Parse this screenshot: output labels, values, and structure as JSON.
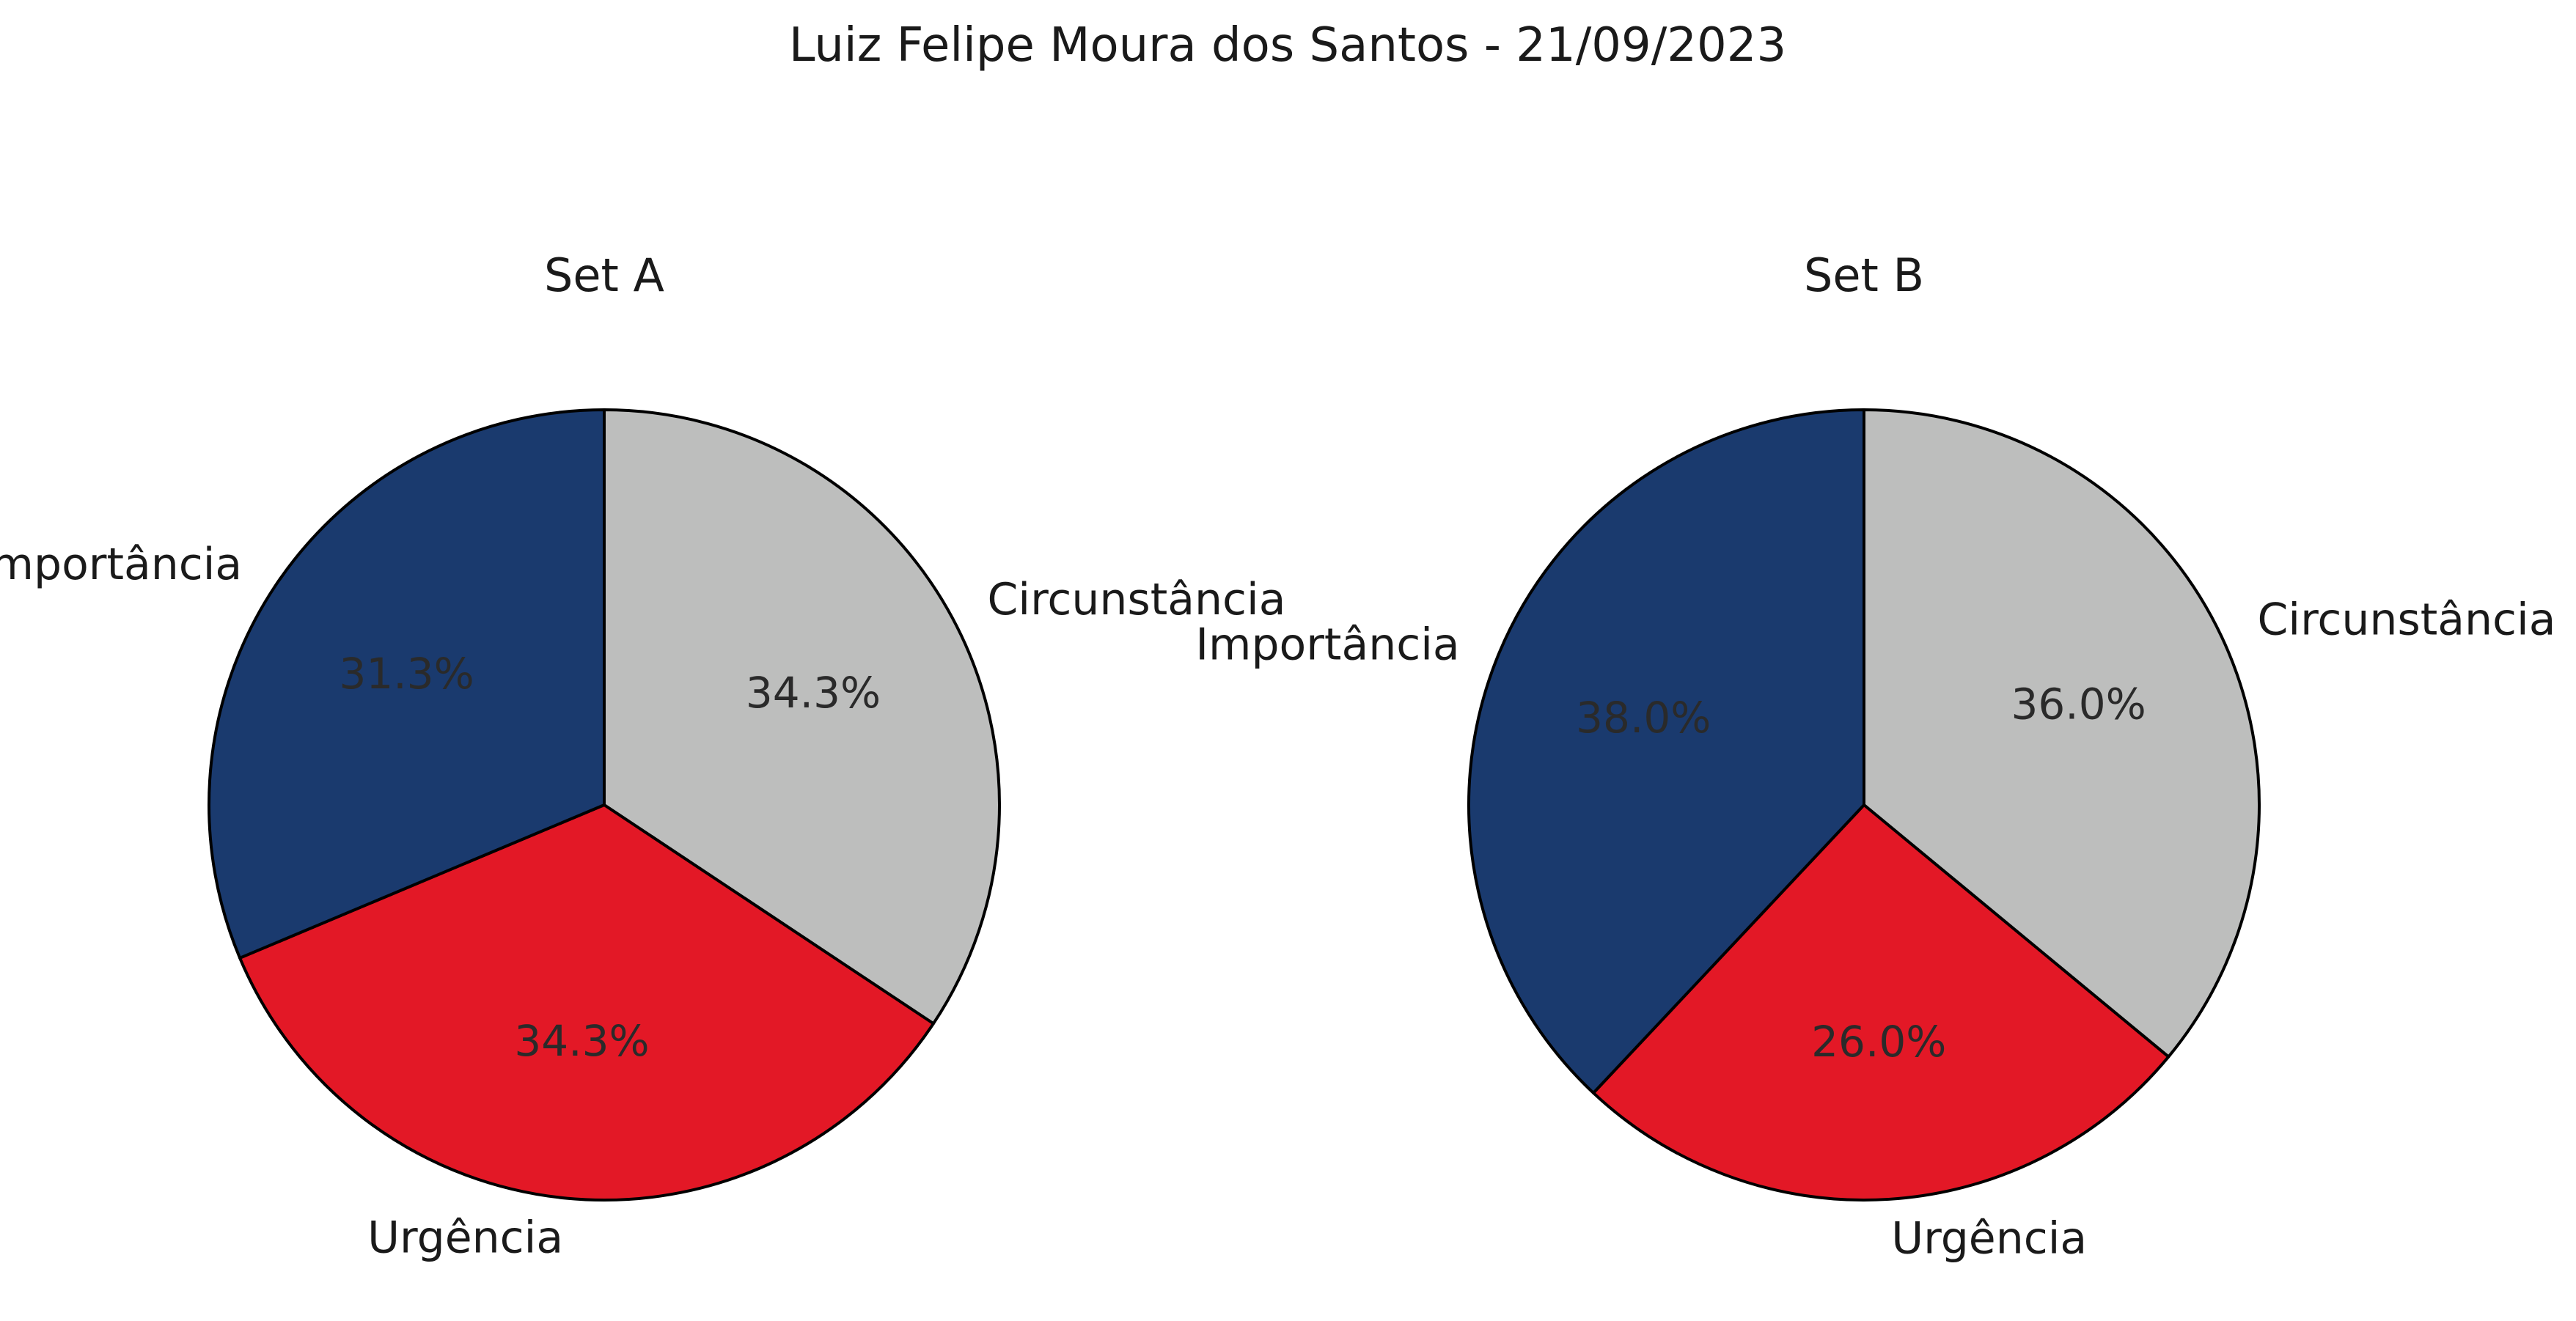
{
  "title": "Luiz Felipe Moura dos Santos - 21/09/2023",
  "chart_data": [
    {
      "type": "pie",
      "title": "Set A",
      "categories": [
        "Circunstância",
        "Urgência",
        "Importância"
      ],
      "values": [
        34.3,
        34.3,
        31.3
      ],
      "value_labels": [
        "34.3%",
        "34.3%",
        "31.3%"
      ],
      "colors": [
        "#bdbebd",
        "#e31826",
        "#1a3a6e"
      ],
      "start_angle_deg": 90,
      "direction": "clockwise"
    },
    {
      "type": "pie",
      "title": "Set B",
      "categories": [
        "Circunstância",
        "Urgência",
        "Importância"
      ],
      "values": [
        36.0,
        26.0,
        38.0
      ],
      "value_labels": [
        "36.0%",
        "26.0%",
        "38.0%"
      ],
      "colors": [
        "#bdbebd",
        "#e31826",
        "#1a3a6e"
      ],
      "start_angle_deg": 90,
      "direction": "clockwise"
    }
  ]
}
